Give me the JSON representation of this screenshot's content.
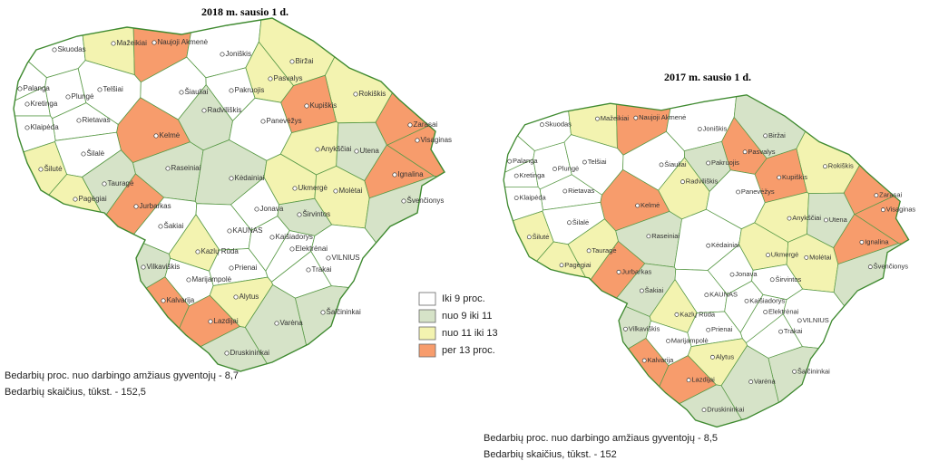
{
  "maps": [
    {
      "title": "2018 m. sausio 1 d.",
      "caption": [
        "Bedarbių proc. nuo darbingo amžiaus gyventojų - 8,7",
        "Bedarbių skaičius, tūkst. - 152,5"
      ],
      "places": [
        {
          "name": "Skuodas",
          "fill": "#ffffff"
        },
        {
          "name": "Mažeikiai",
          "fill": "#f3f3b0"
        },
        {
          "name": "Naujoji Akmenė",
          "fill": "#f79c6c"
        },
        {
          "name": "Joniškis",
          "fill": "#ffffff"
        },
        {
          "name": "Biržai",
          "fill": "#f3f3b0"
        },
        {
          "name": "Pasvalys",
          "fill": "#f3f3b0"
        },
        {
          "name": "Rokiškis",
          "fill": "#f3f3b0"
        },
        {
          "name": "Palanga",
          "fill": "#ffffff"
        },
        {
          "name": "Kretinga",
          "fill": "#ffffff"
        },
        {
          "name": "Plungė",
          "fill": "#ffffff"
        },
        {
          "name": "Telšiai",
          "fill": "#ffffff"
        },
        {
          "name": "Šiauliai",
          "fill": "#ffffff"
        },
        {
          "name": "Pakruojis",
          "fill": "#ffffff"
        },
        {
          "name": "Radviliškis",
          "fill": "#d6e3c8"
        },
        {
          "name": "Kupiškis",
          "fill": "#f79c6c"
        },
        {
          "name": "Zarasai",
          "fill": "#f79c6c"
        },
        {
          "name": "Rietavas",
          "fill": "#ffffff"
        },
        {
          "name": "Panevėžys",
          "fill": "#ffffff"
        },
        {
          "name": "Klaipėda",
          "fill": "#ffffff"
        },
        {
          "name": "Kelmė",
          "fill": "#f79c6c"
        },
        {
          "name": "Anykščiai",
          "fill": "#f3f3b0"
        },
        {
          "name": "Utena",
          "fill": "#d6e3c8"
        },
        {
          "name": "Visaginas",
          "fill": "#f79c6c"
        },
        {
          "name": "Šilalė",
          "fill": "#ffffff"
        },
        {
          "name": "Šilutė",
          "fill": "#f3f3b0"
        },
        {
          "name": "Raseiniai",
          "fill": "#d6e3c8"
        },
        {
          "name": "Ignalina",
          "fill": "#f79c6c"
        },
        {
          "name": "Kėdainiai",
          "fill": "#d6e3c8"
        },
        {
          "name": "Tauragė",
          "fill": "#d6e3c8"
        },
        {
          "name": "Ukmergė",
          "fill": "#f3f3b0"
        },
        {
          "name": "Molėtai",
          "fill": "#f3f3b0"
        },
        {
          "name": "Pagėgiai",
          "fill": "#f3f3b0"
        },
        {
          "name": "Švenčionys",
          "fill": "#d6e3c8"
        },
        {
          "name": "Jurbarkas",
          "fill": "#f79c6c"
        },
        {
          "name": "Jonava",
          "fill": "#ffffff"
        },
        {
          "name": "Širvintos",
          "fill": "#d6e3c8"
        },
        {
          "name": "Šakiai",
          "fill": "#ffffff"
        },
        {
          "name": "KAUNAS",
          "fill": "#ffffff"
        },
        {
          "name": "Kaišiadorys",
          "fill": "#ffffff"
        },
        {
          "name": "Kazlų Rūda",
          "fill": "#f3f3b0"
        },
        {
          "name": "Elektrėnai",
          "fill": "#ffffff"
        },
        {
          "name": "VILNIUS",
          "fill": "#ffffff"
        },
        {
          "name": "Vilkaviškis",
          "fill": "#d6e3c8"
        },
        {
          "name": "Prienai",
          "fill": "#ffffff"
        },
        {
          "name": "Trakai",
          "fill": "#ffffff"
        },
        {
          "name": "Marijampolė",
          "fill": "#ffffff"
        },
        {
          "name": "Alytus",
          "fill": "#f3f3b0"
        },
        {
          "name": "Šalčininkai",
          "fill": "#d6e3c8"
        },
        {
          "name": "Kalvarija",
          "fill": "#f79c6c"
        },
        {
          "name": "Lazdijai",
          "fill": "#f79c6c"
        },
        {
          "name": "Varėna",
          "fill": "#d6e3c8"
        },
        {
          "name": "Druskininkai",
          "fill": "#d6e3c8"
        }
      ]
    },
    {
      "title": "2017 m. sausio 1 d.",
      "caption": [
        "Bedarbių proc. nuo darbingo amžiaus gyventojų - 8,5",
        "Bedarbių skaičius, tūkst. - 152"
      ],
      "places": [
        {
          "name": "Skuodas",
          "fill": "#ffffff"
        },
        {
          "name": "Mažeikiai",
          "fill": "#f3f3b0"
        },
        {
          "name": "Naujoji Akmenė",
          "fill": "#f79c6c"
        },
        {
          "name": "Joniškis",
          "fill": "#ffffff"
        },
        {
          "name": "Biržai",
          "fill": "#d6e3c8"
        },
        {
          "name": "Pasvalys",
          "fill": "#f79c6c"
        },
        {
          "name": "Rokiškis",
          "fill": "#f3f3b0"
        },
        {
          "name": "Palanga",
          "fill": "#ffffff"
        },
        {
          "name": "Kretinga",
          "fill": "#ffffff"
        },
        {
          "name": "Plungė",
          "fill": "#ffffff"
        },
        {
          "name": "Telšiai",
          "fill": "#ffffff"
        },
        {
          "name": "Šiauliai",
          "fill": "#ffffff"
        },
        {
          "name": "Pakruojis",
          "fill": "#d6e3c8"
        },
        {
          "name": "Radviliškis",
          "fill": "#f3f3b0"
        },
        {
          "name": "Kupiškis",
          "fill": "#f79c6c"
        },
        {
          "name": "Zarasai",
          "fill": "#f79c6c"
        },
        {
          "name": "Rietavas",
          "fill": "#ffffff"
        },
        {
          "name": "Panevėžys",
          "fill": "#ffffff"
        },
        {
          "name": "Klaipėda",
          "fill": "#ffffff"
        },
        {
          "name": "Kelmė",
          "fill": "#f79c6c"
        },
        {
          "name": "Anykščiai",
          "fill": "#f3f3b0"
        },
        {
          "name": "Utena",
          "fill": "#d6e3c8"
        },
        {
          "name": "Visaginas",
          "fill": "#f79c6c"
        },
        {
          "name": "Šilalė",
          "fill": "#ffffff"
        },
        {
          "name": "Šilutė",
          "fill": "#f3f3b0"
        },
        {
          "name": "Raseiniai",
          "fill": "#d6e3c8"
        },
        {
          "name": "Ignalina",
          "fill": "#f79c6c"
        },
        {
          "name": "Kėdainiai",
          "fill": "#ffffff"
        },
        {
          "name": "Tauragė",
          "fill": "#f3f3b0"
        },
        {
          "name": "Ukmergė",
          "fill": "#f3f3b0"
        },
        {
          "name": "Molėtai",
          "fill": "#f3f3b0"
        },
        {
          "name": "Pagėgiai",
          "fill": "#f3f3b0"
        },
        {
          "name": "Švenčionys",
          "fill": "#d6e3c8"
        },
        {
          "name": "Jurbarkas",
          "fill": "#f79c6c"
        },
        {
          "name": "Jonava",
          "fill": "#ffffff"
        },
        {
          "name": "Širvintos",
          "fill": "#ffffff"
        },
        {
          "name": "Šakiai",
          "fill": "#d6e3c8"
        },
        {
          "name": "KAUNAS",
          "fill": "#ffffff"
        },
        {
          "name": "Kaišiadorys",
          "fill": "#ffffff"
        },
        {
          "name": "Kazlų Rūda",
          "fill": "#f3f3b0"
        },
        {
          "name": "Elektrėnai",
          "fill": "#ffffff"
        },
        {
          "name": "VILNIUS",
          "fill": "#ffffff"
        },
        {
          "name": "Vilkaviškis",
          "fill": "#d6e3c8"
        },
        {
          "name": "Prienai",
          "fill": "#ffffff"
        },
        {
          "name": "Trakai",
          "fill": "#ffffff"
        },
        {
          "name": "Marijampolė",
          "fill": "#ffffff"
        },
        {
          "name": "Alytus",
          "fill": "#f3f3b0"
        },
        {
          "name": "Šalčininkai",
          "fill": "#d6e3c8"
        },
        {
          "name": "Kalvarija",
          "fill": "#f79c6c"
        },
        {
          "name": "Lazdijai",
          "fill": "#f79c6c"
        },
        {
          "name": "Varėna",
          "fill": "#d6e3c8"
        },
        {
          "name": "Druskininkai",
          "fill": "#d6e3c8"
        }
      ]
    }
  ],
  "legend": [
    {
      "label": "Iki 9 proc.",
      "color": "#ffffff"
    },
    {
      "label": "nuo 9 iki 11",
      "color": "#d6e3c8"
    },
    {
      "label": "nuo 11 iki 13",
      "color": "#f3f3b0"
    },
    {
      "label": "per 13 proc.",
      "color": "#f79c6c"
    }
  ]
}
